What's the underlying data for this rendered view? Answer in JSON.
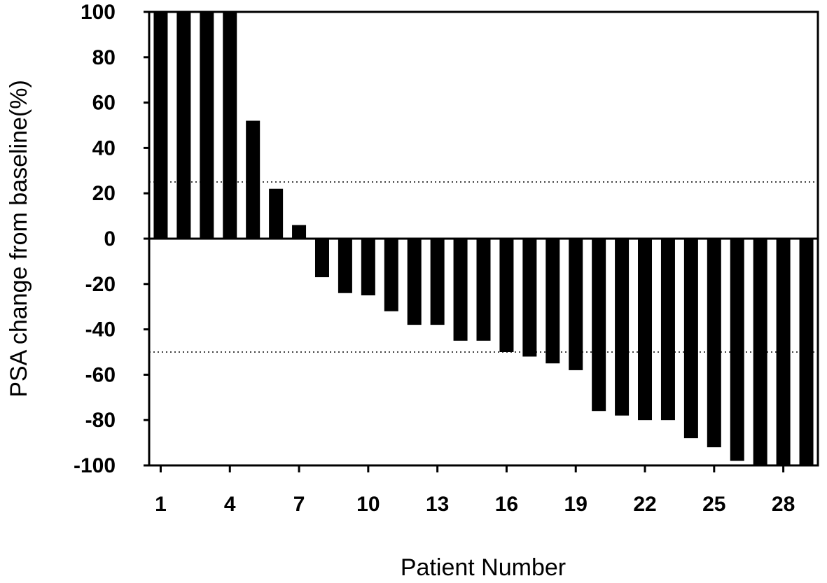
{
  "chart_data": {
    "type": "bar",
    "title": "",
    "xlabel": "Patient Number",
    "ylabel": "PSA change from baseline(%)",
    "ylim": [
      -100,
      100
    ],
    "yticks": [
      100,
      80,
      60,
      40,
      20,
      0,
      -20,
      -40,
      -60,
      -80,
      -100
    ],
    "ytick_labels": [
      "100",
      "80",
      "60",
      "40",
      "20",
      "0",
      "-20",
      "-40",
      "-60",
      "-80",
      "-100"
    ],
    "xtick_labels": [
      "1",
      "4",
      "7",
      "10",
      "13",
      "16",
      "19",
      "22",
      "25",
      "28"
    ],
    "xtick_positions": [
      1,
      4,
      7,
      10,
      13,
      16,
      19,
      22,
      25,
      28
    ],
    "categories": [
      1,
      2,
      3,
      4,
      5,
      6,
      7,
      8,
      9,
      10,
      11,
      12,
      13,
      14,
      15,
      16,
      17,
      18,
      19,
      20,
      21,
      22,
      23,
      24,
      25,
      26,
      27,
      28,
      29
    ],
    "values": [
      100,
      100,
      100,
      100,
      52,
      22,
      6,
      -17,
      -24,
      -25,
      -32,
      -38,
      -38,
      -45,
      -45,
      -50,
      -52,
      -55,
      -58,
      -76,
      -78,
      -80,
      -80,
      -88,
      -92,
      -98,
      -100,
      -100,
      -100
    ],
    "reference_lines": [
      25,
      -50
    ],
    "bar_color": "#000000",
    "grid": false,
    "legend": "none"
  }
}
